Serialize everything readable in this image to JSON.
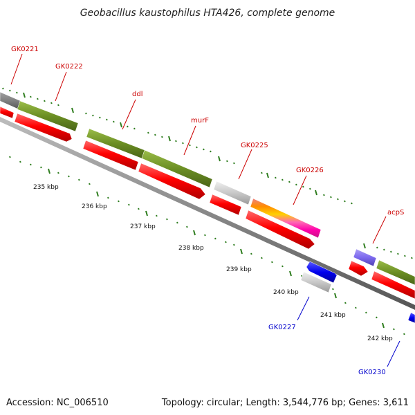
{
  "title": "Geobacillus kaustophilus HTA426, complete genome",
  "footer": {
    "accession": "Accession: NC_006510",
    "summary": "Topology: circular; Length: 3,544,776 bp; Genes: 3,611"
  },
  "colors": {
    "top_strand_label": "#cc0000",
    "bottom_strand_label": "#0000cc",
    "tick_green": "#2e7d1e",
    "backbone": "#888888",
    "cds_red": "#ff0000",
    "gene_olive": "#6b8e23",
    "gene_gray": "#bdbdbd",
    "gene_blue": "#0000ee",
    "gene_purple": "#7b68ee"
  },
  "ruler_labels": [
    "235 kbp",
    "236 kbp",
    "237 kbp",
    "238 kbp",
    "239 kbp",
    "240 kbp",
    "241 kbp",
    "242 kbp"
  ],
  "top_genes": [
    "GK0221",
    "GK0222",
    "ddl",
    "murF",
    "GK0225",
    "GK0226",
    "acpS"
  ],
  "bottom_genes": [
    "GK0227",
    "GK0230"
  ]
}
